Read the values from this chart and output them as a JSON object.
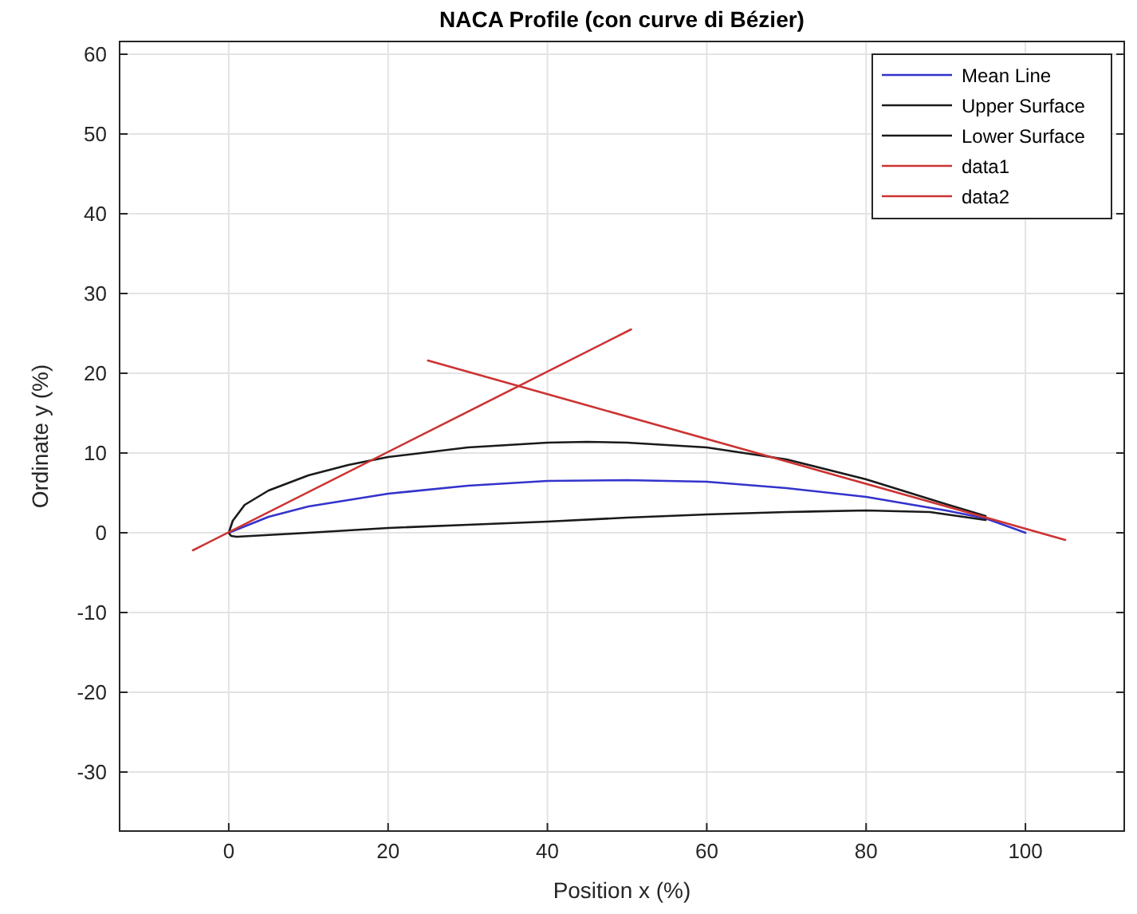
{
  "chart_data": {
    "type": "line",
    "title": "NACA Profile (con curve di Bézier)",
    "xlabel": "Position x (%)",
    "ylabel": "Ordinate y (%)",
    "xlim": [
      -13.7,
      112.4
    ],
    "ylim": [
      -37.4,
      61.6
    ],
    "xticks": [
      0,
      20,
      40,
      60,
      80,
      100
    ],
    "yticks": [
      -30,
      -20,
      -10,
      0,
      10,
      20,
      30,
      40,
      50,
      60
    ],
    "grid": true,
    "legend": "top right",
    "line_style": "solid",
    "marker": "none",
    "series": [
      {
        "name": "Mean Line",
        "color": "#3333cc",
        "x": [
          0,
          5,
          10,
          20,
          30,
          40,
          50,
          60,
          70,
          80,
          90,
          95,
          100
        ],
        "values": [
          0,
          2.0,
          3.3,
          4.9,
          5.9,
          6.5,
          6.6,
          6.4,
          5.6,
          4.5,
          2.8,
          1.8,
          0
        ]
      },
      {
        "name": "Upper Surface",
        "color": "#1a1a1a",
        "x": [
          0,
          0.5,
          2,
          5,
          10,
          15,
          20,
          30,
          40,
          45,
          50,
          60,
          70,
          80,
          90,
          95
        ],
        "values": [
          0,
          1.5,
          3.5,
          5.3,
          7.2,
          8.5,
          9.5,
          10.7,
          11.3,
          11.4,
          11.3,
          10.7,
          9.2,
          6.7,
          3.6,
          2.1
        ]
      },
      {
        "name": "Lower Surface",
        "color": "#1a1a1a",
        "x": [
          0,
          0.3,
          1,
          10,
          20,
          30,
          40,
          50,
          60,
          70,
          80,
          88,
          95
        ],
        "values": [
          0,
          -0.4,
          -0.5,
          0,
          0.6,
          1.0,
          1.4,
          1.9,
          2.3,
          2.6,
          2.8,
          2.6,
          1.6
        ]
      },
      {
        "name": "data1",
        "color": "#cc3333",
        "x": [
          -4.5,
          50.5
        ],
        "values": [
          -2.2,
          25.5
        ]
      },
      {
        "name": "data2",
        "color": "#cc3333",
        "x": [
          25,
          105
        ],
        "values": [
          21.6,
          -0.9
        ]
      }
    ]
  }
}
